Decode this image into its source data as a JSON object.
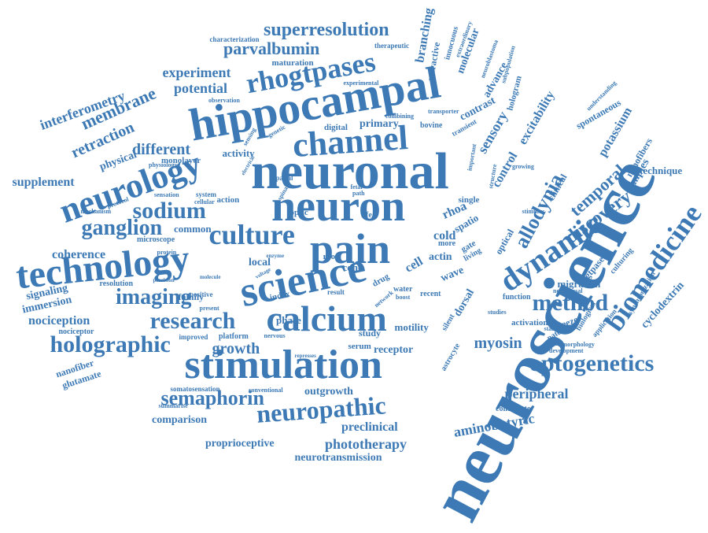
{
  "accent_color": "#3d7ab5",
  "background_color": "#ffffff",
  "words": [
    "neuroscience",
    "neuronal",
    "hippocampal",
    "neuron",
    "science",
    "pain",
    "stimulation",
    "technology",
    "calcium",
    "channel",
    "neurology",
    "rhogtpases",
    "dynamic",
    "biomedicine",
    "optogenetics",
    "culture",
    "research",
    "neuropathic",
    "holographic",
    "imaging",
    "semaphorin",
    "sodium",
    "ganglion",
    "method",
    "allodynia",
    "discovery",
    "temporal",
    "superresolution",
    "parvalbumin",
    "membrane",
    "retraction",
    "interferometry",
    "potential",
    "experiment",
    "different",
    "supplement",
    "coherence",
    "nociception",
    "immersion",
    "signaling",
    "growth",
    "phototherapy",
    "neurotransmission",
    "proprioceptive",
    "preclinical",
    "aminobutyric",
    "peripheral",
    "outgrowth",
    "comparison",
    "nanofiber",
    "glutamate",
    "nociceptor",
    "family",
    "platform",
    "receptor",
    "myosin",
    "cyclodextrin",
    "potassium",
    "excitability",
    "sensory",
    "control",
    "contrast",
    "advance",
    "molecular",
    "branching",
    "refractive",
    "innocuous",
    "primary",
    "digital",
    "activity",
    "physical",
    "monolayer",
    "common",
    "local",
    "cell",
    "cold",
    "actin",
    "wave",
    "dorsal",
    "motility",
    "study",
    "phase",
    "index",
    "drug",
    "cone",
    "root",
    "migration",
    "culturing",
    "gtpases",
    "patch",
    "tweezer",
    "activation",
    "function",
    "recent",
    "water",
    "result",
    "serum",
    "action",
    "optic",
    "life",
    "rhoa",
    "spatio",
    "single",
    "gate",
    "living",
    "optical",
    "more",
    "more_x",
    "neurobasal",
    "samples",
    "nanofibers",
    "synchronization",
    "application",
    "development",
    "morphology",
    "standard",
    "biological",
    "clinical",
    "spontaneous",
    "understanding",
    "technique",
    "therapeutic",
    "maturation",
    "characterization",
    "extraordinary",
    "neuroblastoma",
    "subpopulation",
    "hologram",
    "transporter",
    "combining",
    "bovine",
    "transient",
    "important",
    "structure",
    "growing",
    "stimulus",
    "resolution",
    "microscope",
    "protein",
    "mechanism",
    "protocol",
    "sensation",
    "system",
    "cellular",
    "spatial",
    "improved",
    "nervous",
    "positive",
    "present",
    "conventional",
    "somatosensation",
    "summarise",
    "silent",
    "astrocyte",
    "contribute",
    "studies",
    "fetal",
    "path",
    "network",
    "boost",
    "experimental",
    "observation",
    "physiology",
    "genetic",
    "sensing",
    "electrical",
    "spinal",
    "precision",
    "molecule",
    "voltage",
    "enzyme",
    "represses",
    "neuronal_small"
  ]
}
